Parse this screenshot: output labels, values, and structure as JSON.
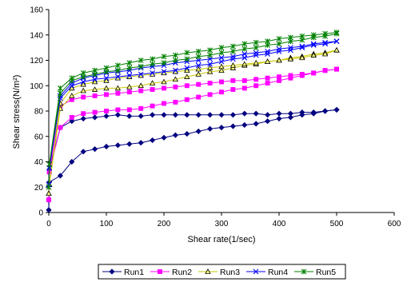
{
  "chart_data": {
    "type": "line",
    "title": "",
    "xlabel": "Shear rate(1/sec)",
    "ylabel": "Shear stress(N/m²)",
    "xlim": [
      0,
      600
    ],
    "ylim": [
      0,
      160
    ],
    "xticks": [
      "0",
      "100",
      "200",
      "300",
      "400",
      "500",
      "600"
    ],
    "yticks": [
      "0",
      "20",
      "40",
      "60",
      "80",
      "100",
      "120",
      "140",
      "160"
    ],
    "grid": false,
    "legend_position": "bottom",
    "series": [
      {
        "name": "Run1",
        "color": "#000080",
        "marker": "diamond",
        "lower": [
          [
            0,
            2
          ],
          [
            1,
            24
          ],
          [
            20,
            29
          ],
          [
            40,
            40
          ],
          [
            60,
            48
          ],
          [
            80,
            50
          ],
          [
            100,
            52
          ],
          [
            120,
            53
          ],
          [
            140,
            54
          ],
          [
            160,
            55
          ],
          [
            180,
            57
          ],
          [
            200,
            59
          ],
          [
            220,
            61
          ],
          [
            240,
            62
          ],
          [
            260,
            64
          ],
          [
            280,
            66
          ],
          [
            300,
            67
          ],
          [
            320,
            68
          ],
          [
            340,
            69
          ],
          [
            360,
            70
          ],
          [
            380,
            72
          ],
          [
            400,
            74
          ],
          [
            420,
            75
          ],
          [
            440,
            77
          ],
          [
            460,
            78
          ],
          [
            480,
            80
          ],
          [
            500,
            81
          ]
        ],
        "upper": [
          [
            0,
            2
          ],
          [
            1,
            34
          ],
          [
            20,
            67
          ],
          [
            40,
            72
          ],
          [
            60,
            74
          ],
          [
            80,
            75
          ],
          [
            100,
            76
          ],
          [
            120,
            77
          ],
          [
            140,
            76
          ],
          [
            160,
            76
          ],
          [
            180,
            77
          ],
          [
            200,
            77
          ],
          [
            220,
            77
          ],
          [
            240,
            77
          ],
          [
            260,
            77
          ],
          [
            280,
            77
          ],
          [
            300,
            77
          ],
          [
            320,
            77
          ],
          [
            340,
            78
          ],
          [
            360,
            78
          ],
          [
            380,
            77
          ],
          [
            400,
            78
          ],
          [
            420,
            78
          ],
          [
            440,
            79
          ],
          [
            460,
            79
          ],
          [
            480,
            80
          ],
          [
            500,
            81
          ]
        ]
      },
      {
        "name": "Run2",
        "color": "#ff00ff",
        "marker": "square",
        "lower": [
          [
            0,
            10
          ],
          [
            1,
            32
          ],
          [
            20,
            67
          ],
          [
            40,
            75
          ],
          [
            60,
            78
          ],
          [
            80,
            79
          ],
          [
            100,
            80
          ],
          [
            120,
            81
          ],
          [
            140,
            81
          ],
          [
            160,
            82
          ],
          [
            180,
            84
          ],
          [
            200,
            86
          ],
          [
            220,
            87
          ],
          [
            240,
            89
          ],
          [
            260,
            91
          ],
          [
            280,
            93
          ],
          [
            300,
            95
          ],
          [
            320,
            97
          ],
          [
            340,
            98
          ],
          [
            360,
            100
          ],
          [
            380,
            102
          ],
          [
            400,
            104
          ],
          [
            420,
            106
          ],
          [
            440,
            108
          ],
          [
            460,
            110
          ],
          [
            480,
            112
          ],
          [
            500,
            113
          ]
        ],
        "upper": [
          [
            0,
            10
          ],
          [
            1,
            32
          ],
          [
            20,
            84
          ],
          [
            40,
            89
          ],
          [
            60,
            91
          ],
          [
            80,
            92
          ],
          [
            100,
            93
          ],
          [
            120,
            94
          ],
          [
            140,
            95
          ],
          [
            160,
            96
          ],
          [
            180,
            97
          ],
          [
            200,
            98
          ],
          [
            220,
            99
          ],
          [
            240,
            100
          ],
          [
            260,
            101
          ],
          [
            280,
            102
          ],
          [
            300,
            103
          ],
          [
            320,
            104
          ],
          [
            340,
            104
          ],
          [
            360,
            105
          ],
          [
            380,
            106
          ],
          [
            400,
            107
          ],
          [
            420,
            108
          ],
          [
            440,
            109
          ],
          [
            460,
            110
          ],
          [
            480,
            112
          ],
          [
            500,
            113
          ]
        ]
      },
      {
        "name": "Run3",
        "color": "#c8c800",
        "marker": "triangle",
        "lower": [
          [
            0,
            15
          ],
          [
            1,
            22
          ],
          [
            20,
            82
          ],
          [
            40,
            92
          ],
          [
            60,
            96
          ],
          [
            80,
            97
          ],
          [
            100,
            98
          ],
          [
            120,
            98
          ],
          [
            140,
            99
          ],
          [
            160,
            100
          ],
          [
            180,
            102
          ],
          [
            200,
            103
          ],
          [
            220,
            105
          ],
          [
            240,
            107
          ],
          [
            260,
            109
          ],
          [
            280,
            111
          ],
          [
            300,
            112
          ],
          [
            320,
            114
          ],
          [
            340,
            116
          ],
          [
            360,
            117
          ],
          [
            380,
            119
          ],
          [
            400,
            120
          ],
          [
            420,
            122
          ],
          [
            440,
            123
          ],
          [
            460,
            125
          ],
          [
            480,
            126
          ],
          [
            500,
            128
          ]
        ],
        "upper": [
          [
            0,
            15
          ],
          [
            1,
            22
          ],
          [
            20,
            86
          ],
          [
            40,
            98
          ],
          [
            60,
            101
          ],
          [
            80,
            103
          ],
          [
            100,
            104
          ],
          [
            120,
            106
          ],
          [
            140,
            107
          ],
          [
            160,
            108
          ],
          [
            180,
            109
          ],
          [
            200,
            110
          ],
          [
            220,
            111
          ],
          [
            240,
            112
          ],
          [
            260,
            113
          ],
          [
            280,
            114
          ],
          [
            300,
            115
          ],
          [
            320,
            116
          ],
          [
            340,
            117
          ],
          [
            360,
            118
          ],
          [
            380,
            119
          ],
          [
            400,
            120
          ],
          [
            420,
            121
          ],
          [
            440,
            122
          ],
          [
            460,
            124
          ],
          [
            480,
            125
          ],
          [
            500,
            128
          ]
        ]
      },
      {
        "name": "Run4",
        "color": "#0000ff",
        "marker": "x",
        "lower": [
          [
            0,
            22
          ],
          [
            1,
            35
          ],
          [
            20,
            90
          ],
          [
            40,
            100
          ],
          [
            60,
            103
          ],
          [
            80,
            105
          ],
          [
            100,
            106
          ],
          [
            120,
            107
          ],
          [
            140,
            108
          ],
          [
            160,
            109
          ],
          [
            180,
            110
          ],
          [
            200,
            111
          ],
          [
            220,
            112
          ],
          [
            240,
            114
          ],
          [
            260,
            116
          ],
          [
            280,
            117
          ],
          [
            300,
            119
          ],
          [
            320,
            121
          ],
          [
            340,
            122
          ],
          [
            360,
            124
          ],
          [
            380,
            125
          ],
          [
            400,
            127
          ],
          [
            420,
            128
          ],
          [
            440,
            130
          ],
          [
            460,
            132
          ],
          [
            480,
            133
          ],
          [
            500,
            135
          ]
        ],
        "upper": [
          [
            0,
            22
          ],
          [
            1,
            35
          ],
          [
            20,
            92
          ],
          [
            40,
            102
          ],
          [
            60,
            106
          ],
          [
            80,
            108
          ],
          [
            100,
            110
          ],
          [
            120,
            111
          ],
          [
            140,
            112
          ],
          [
            160,
            114
          ],
          [
            180,
            115
          ],
          [
            200,
            116
          ],
          [
            220,
            118
          ],
          [
            240,
            119
          ],
          [
            260,
            120
          ],
          [
            280,
            121
          ],
          [
            300,
            122
          ],
          [
            320,
            123
          ],
          [
            340,
            125
          ],
          [
            360,
            126
          ],
          [
            380,
            127
          ],
          [
            400,
            129
          ],
          [
            420,
            130
          ],
          [
            440,
            131
          ],
          [
            460,
            133
          ],
          [
            480,
            134
          ],
          [
            500,
            135
          ]
        ]
      },
      {
        "name": "Run5",
        "color": "#008000",
        "marker": "asterisk",
        "lower": [
          [
            0,
            20
          ],
          [
            1,
            38
          ],
          [
            20,
            94
          ],
          [
            40,
            104
          ],
          [
            60,
            107
          ],
          [
            80,
            109
          ],
          [
            100,
            111
          ],
          [
            120,
            112
          ],
          [
            140,
            114
          ],
          [
            160,
            115
          ],
          [
            180,
            117
          ],
          [
            200,
            118
          ],
          [
            220,
            120
          ],
          [
            240,
            121
          ],
          [
            260,
            123
          ],
          [
            280,
            124
          ],
          [
            300,
            126
          ],
          [
            320,
            127
          ],
          [
            340,
            129
          ],
          [
            360,
            130
          ],
          [
            380,
            132
          ],
          [
            400,
            133
          ],
          [
            420,
            135
          ],
          [
            440,
            136
          ],
          [
            460,
            138
          ],
          [
            480,
            139
          ],
          [
            500,
            141
          ]
        ],
        "upper": [
          [
            0,
            20
          ],
          [
            1,
            38
          ],
          [
            20,
            98
          ],
          [
            40,
            106
          ],
          [
            60,
            110
          ],
          [
            80,
            112
          ],
          [
            100,
            114
          ],
          [
            120,
            116
          ],
          [
            140,
            118
          ],
          [
            160,
            120
          ],
          [
            180,
            121
          ],
          [
            200,
            123
          ],
          [
            220,
            124
          ],
          [
            240,
            126
          ],
          [
            260,
            127
          ],
          [
            280,
            128
          ],
          [
            300,
            130
          ],
          [
            320,
            131
          ],
          [
            340,
            133
          ],
          [
            360,
            134
          ],
          [
            380,
            135
          ],
          [
            400,
            137
          ],
          [
            420,
            138
          ],
          [
            440,
            139
          ],
          [
            460,
            140
          ],
          [
            480,
            141
          ],
          [
            500,
            142
          ]
        ]
      }
    ]
  }
}
